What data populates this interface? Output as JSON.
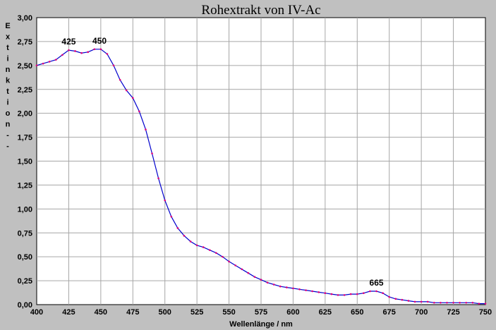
{
  "chart_data": {
    "type": "line",
    "title": "Rohextrakt von IV-Ac",
    "xlabel": "Wellenlänge / nm",
    "ylabel": "Extinktion - -",
    "xlim": [
      400,
      750
    ],
    "ylim": [
      0,
      3
    ],
    "grid": true,
    "xticks": [
      "400",
      "425",
      "450",
      "475",
      "500",
      "525",
      "550",
      "575",
      "600",
      "625",
      "650",
      "675",
      "700",
      "725",
      "750"
    ],
    "yticks": [
      "0,00",
      "0,25",
      "0,50",
      "0,75",
      "1,00",
      "1,25",
      "1,50",
      "1,75",
      "2,00",
      "2,25",
      "2,50",
      "2,75",
      "3,00"
    ],
    "annotations": [
      {
        "text": "425",
        "x": 425,
        "y": 2.66
      },
      {
        "text": "450",
        "x": 449,
        "y": 2.67
      },
      {
        "text": "665",
        "x": 665,
        "y": 0.14
      }
    ],
    "colors": {
      "line": "#0000cc",
      "points": "#e0007a",
      "background": "#c0c0c0",
      "plot_area": "#ffffff"
    },
    "series": [
      {
        "x": [
          400,
          405,
          410,
          415,
          420,
          425,
          430,
          435,
          440,
          445,
          450,
          455,
          460,
          465,
          470,
          475,
          480,
          485,
          490,
          495,
          500,
          505,
          510,
          515,
          520,
          525,
          530,
          535,
          540,
          545,
          550,
          555,
          560,
          565,
          570,
          575,
          580,
          585,
          590,
          595,
          600,
          605,
          610,
          615,
          620,
          625,
          630,
          635,
          640,
          645,
          650,
          655,
          660,
          665,
          670,
          675,
          680,
          685,
          690,
          695,
          700,
          705,
          710,
          715,
          720,
          725,
          730,
          735,
          740,
          745,
          750
        ],
        "values": [
          2.5,
          2.52,
          2.54,
          2.56,
          2.61,
          2.66,
          2.65,
          2.63,
          2.64,
          2.67,
          2.67,
          2.62,
          2.5,
          2.35,
          2.24,
          2.16,
          2.02,
          1.83,
          1.58,
          1.32,
          1.09,
          0.92,
          0.8,
          0.72,
          0.66,
          0.62,
          0.6,
          0.57,
          0.54,
          0.5,
          0.45,
          0.41,
          0.37,
          0.33,
          0.29,
          0.26,
          0.23,
          0.21,
          0.19,
          0.18,
          0.17,
          0.16,
          0.15,
          0.14,
          0.13,
          0.12,
          0.11,
          0.1,
          0.1,
          0.11,
          0.11,
          0.12,
          0.14,
          0.14,
          0.12,
          0.08,
          0.06,
          0.05,
          0.04,
          0.03,
          0.03,
          0.03,
          0.02,
          0.02,
          0.02,
          0.02,
          0.02,
          0.02,
          0.02,
          0.01,
          0.01
        ]
      }
    ]
  }
}
